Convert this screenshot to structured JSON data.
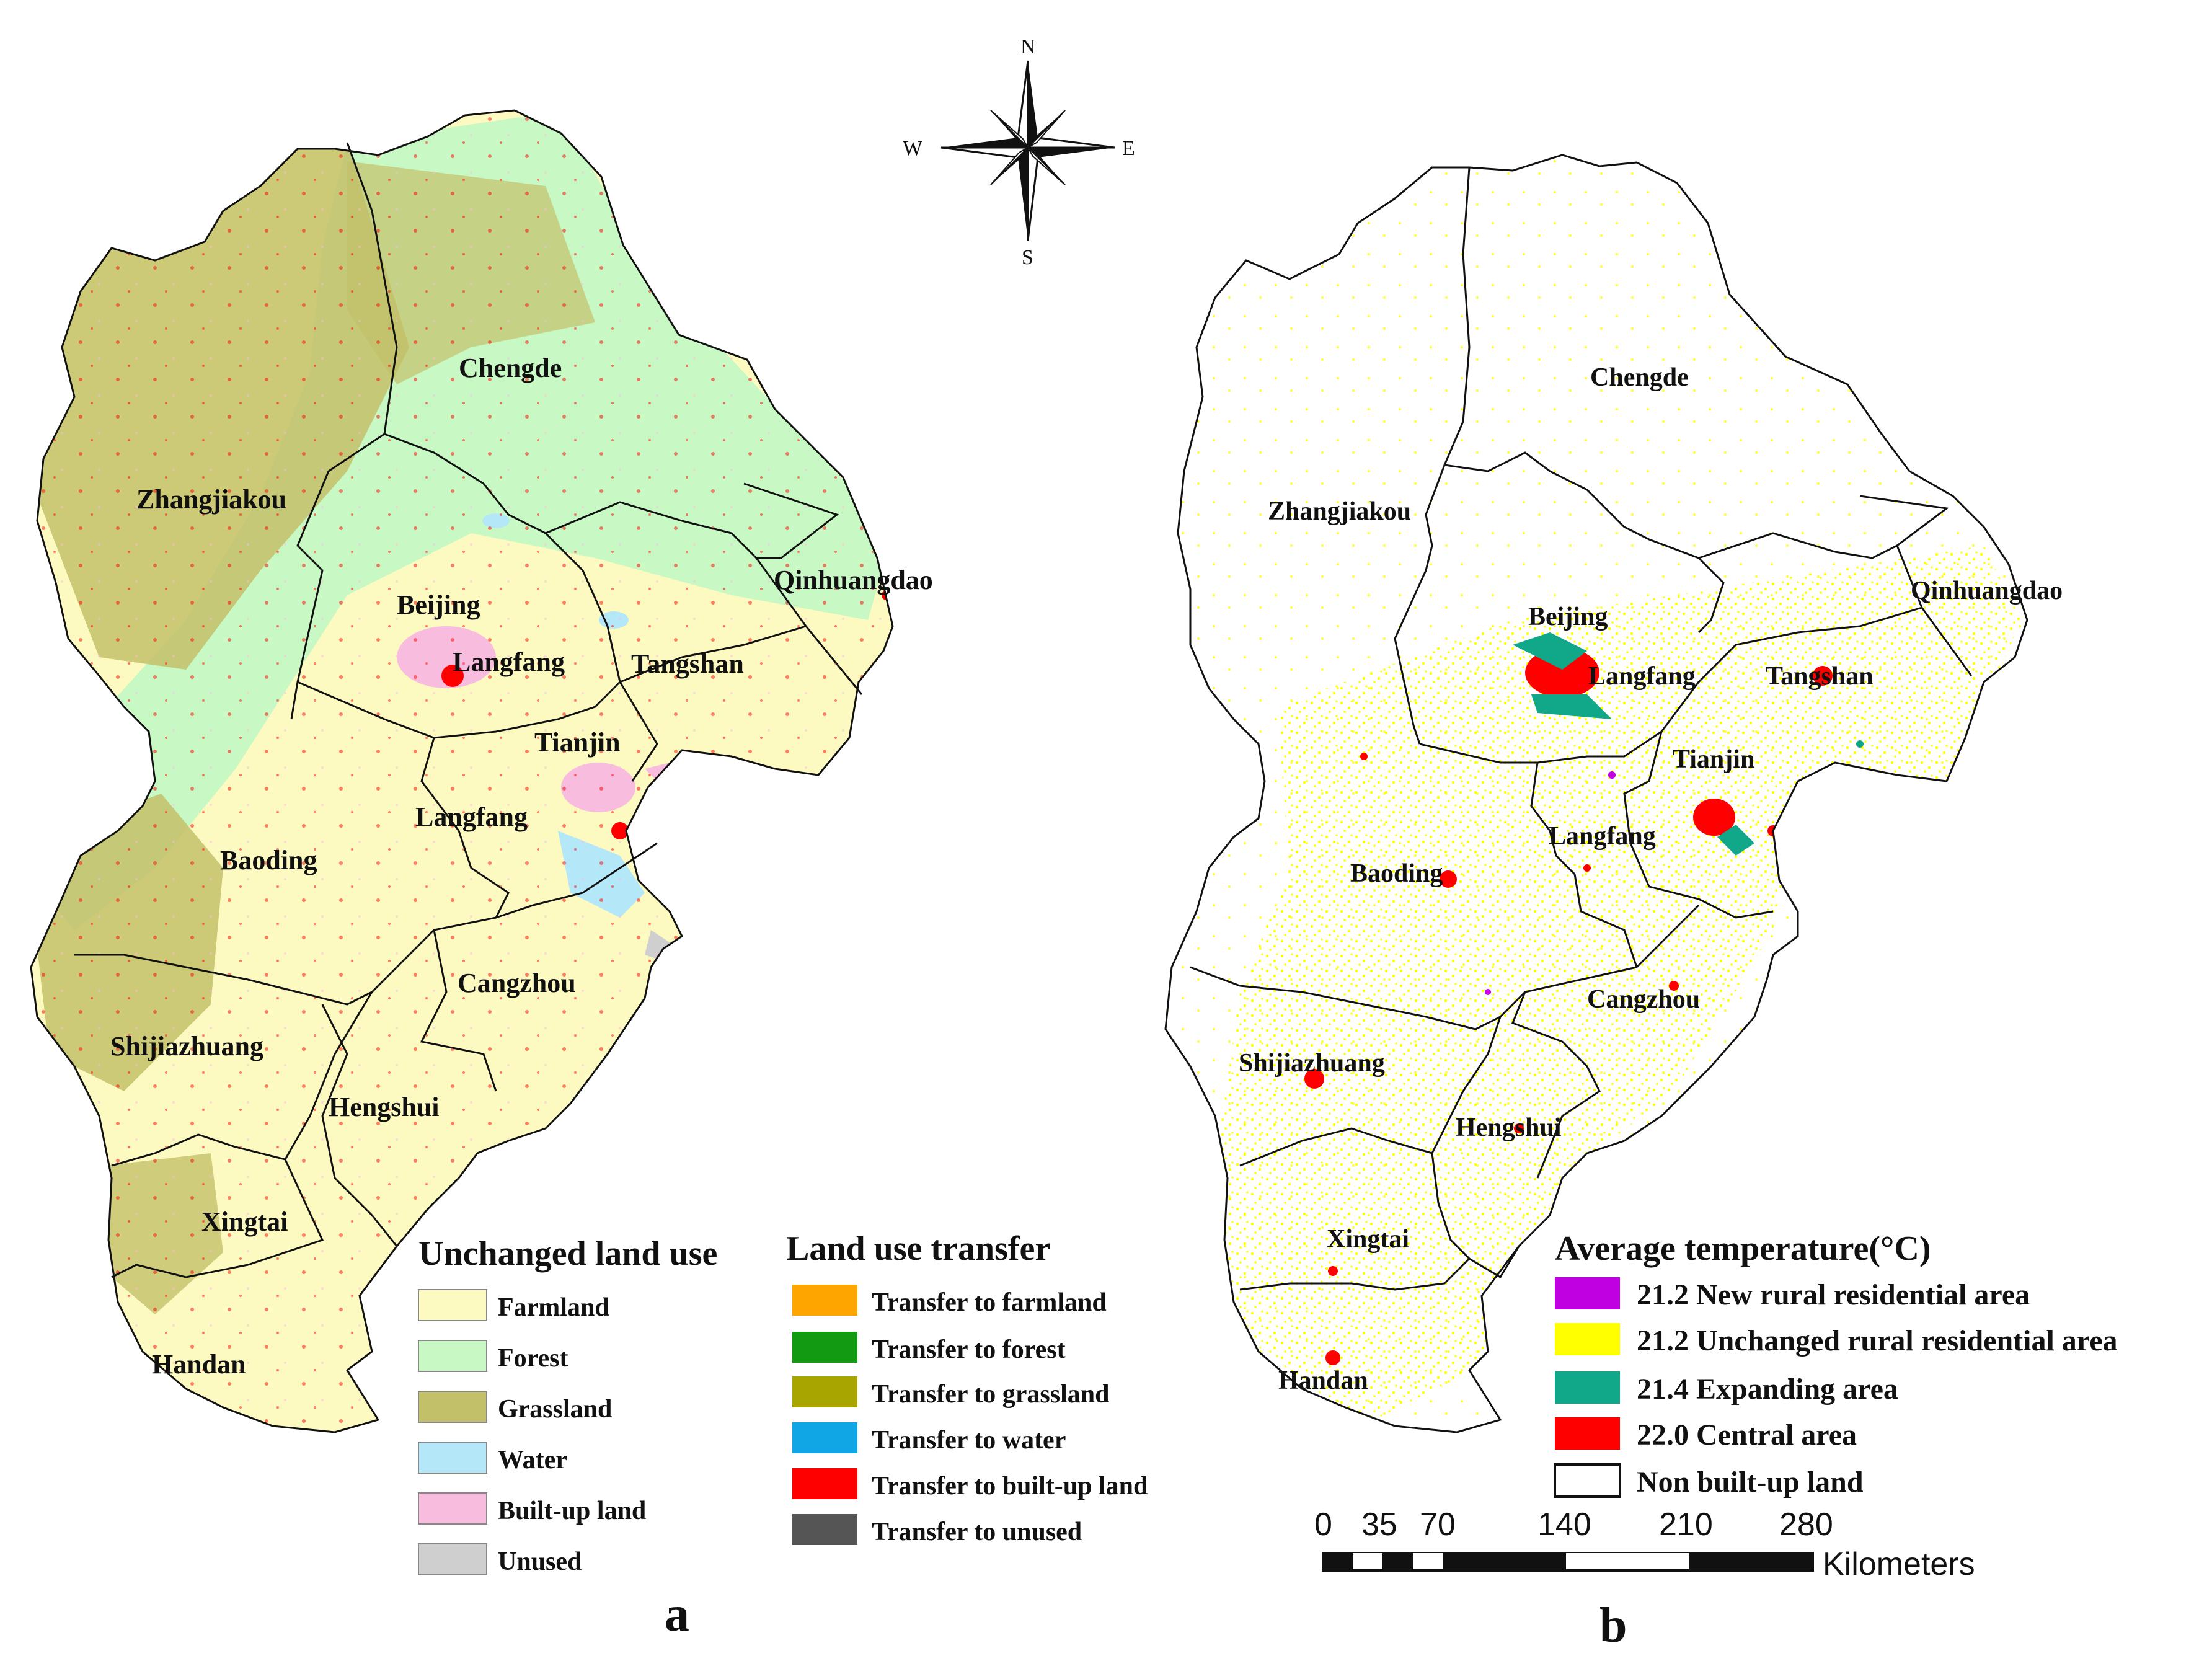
{
  "colors": {
    "farmland": "#fcfac0",
    "forest": "#c8f9c4",
    "grassland": "#c3c06a",
    "water": "#b4e8f8",
    "builtup": "#f8bcde",
    "unused": "#cfcfcf",
    "t_farmland": "#ffa500",
    "t_forest": "#129a12",
    "t_grassland": "#a8a400",
    "t_water": "#10a6e6",
    "t_builtup": "#ff0000",
    "t_unused": "#555555",
    "new_rural": "#c000e0",
    "unchanged_rural": "#ffff00",
    "expanding": "#10a888",
    "central": "#ff0000",
    "nonbuilt": "#ffffff"
  },
  "compass": {
    "n": "N",
    "s": "S",
    "e": "E",
    "w": "W"
  },
  "panel_a": {
    "label": "a",
    "cities": [
      "Chengde",
      "Zhangjiakou",
      "Beijing",
      "Langfang",
      "Tangshan",
      "Qinhuangdao",
      "Tianjin",
      "Langfang",
      "Baoding",
      "Cangzhou",
      "Shijiazhuang",
      "Hengshui",
      "Xingtai",
      "Handan"
    ],
    "legend_unchanged": {
      "title": "Unchanged land use",
      "items": [
        "Farmland",
        "Forest",
        "Grassland",
        "Water",
        "Built-up land",
        "Unused"
      ]
    },
    "legend_transfer": {
      "title": "Land use transfer",
      "items": [
        "Transfer to farmland",
        "Transfer to forest",
        "Transfer to grassland",
        "Transfer to water",
        "Transfer to built-up land",
        "Transfer to unused"
      ]
    }
  },
  "panel_b": {
    "label": "b",
    "cities": [
      "Chengde",
      "Zhangjiakou",
      "Beijing",
      "Langfang",
      "Tangshan",
      "Qinhuangdao",
      "Tianjin",
      "Langfang",
      "Baoding",
      "Cangzhou",
      "Shijiazhuang",
      "Hengshui",
      "Xingtai",
      "Handan"
    ],
    "legend": {
      "title": "Average temperature(°C)",
      "items": [
        "21.2 New rural residential area",
        "21.2 Unchanged rural residential area",
        "21.4 Expanding area",
        "22.0 Central area",
        "Non built-up land"
      ]
    },
    "scale": {
      "ticks": [
        "0",
        "35",
        "70",
        "140",
        "210",
        "280"
      ],
      "unit": "Kilometers"
    }
  }
}
